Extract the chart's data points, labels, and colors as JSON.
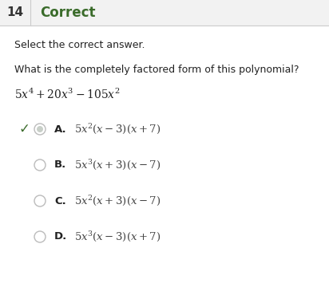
{
  "bg_color": "#ffffff",
  "header_bg": "#f2f2f2",
  "header_number": "14",
  "header_title": "Correct",
  "header_title_color": "#3a6b2a",
  "header_number_color": "#333333",
  "instruction": "Select the correct answer.",
  "question": "What is the completely factored form of this polynomial?",
  "options": [
    {
      "label": "A.",
      "correct": true
    },
    {
      "label": "B.",
      "correct": false
    },
    {
      "label": "C.",
      "correct": false
    },
    {
      "label": "D.",
      "correct": false
    }
  ],
  "divider_color": "#cccccc",
  "circle_edge_color": "#bbbbbb",
  "circle_correct_fill": "#c8cfc8",
  "checkmark_color": "#3a6b2a",
  "label_color": "#222222",
  "text_color": "#444444",
  "font_size_header_num": 11,
  "font_size_header_title": 12,
  "font_size_instruction": 9,
  "font_size_question": 9,
  "font_size_poly": 10,
  "font_size_option_label": 9.5,
  "font_size_option_text": 9.5
}
